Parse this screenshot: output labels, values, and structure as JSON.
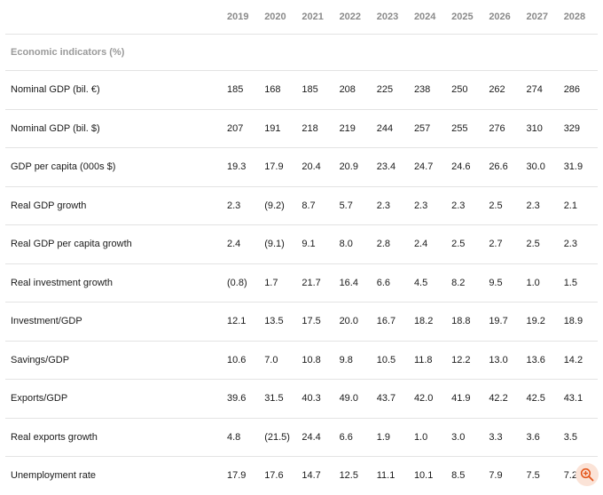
{
  "header": {
    "label": "",
    "years": [
      "2019",
      "2020",
      "2021",
      "2022",
      "2023",
      "2024",
      "2025",
      "2026",
      "2027",
      "2028"
    ]
  },
  "section_title": "Economic indicators (%)",
  "rows": [
    {
      "label": "Nominal GDP (bil. €)",
      "values": [
        "185",
        "168",
        "185",
        "208",
        "225",
        "238",
        "250",
        "262",
        "274",
        "286"
      ]
    },
    {
      "label": "Nominal GDP (bil. $)",
      "values": [
        "207",
        "191",
        "218",
        "219",
        "244",
        "257",
        "255",
        "276",
        "310",
        "329"
      ]
    },
    {
      "label": "GDP per capita (000s $)",
      "values": [
        "19.3",
        "17.9",
        "20.4",
        "20.9",
        "23.4",
        "24.7",
        "24.6",
        "26.6",
        "30.0",
        "31.9"
      ]
    },
    {
      "label": "Real GDP growth",
      "values": [
        "2.3",
        "(9.2)",
        "8.7",
        "5.7",
        "2.3",
        "2.3",
        "2.3",
        "2.5",
        "2.3",
        "2.1"
      ]
    },
    {
      "label": "Real GDP per capita growth",
      "values": [
        "2.4",
        "(9.1)",
        "9.1",
        "8.0",
        "2.8",
        "2.4",
        "2.5",
        "2.7",
        "2.5",
        "2.3"
      ]
    },
    {
      "label": "Real investment growth",
      "values": [
        "(0.8)",
        "1.7",
        "21.7",
        "16.4",
        "6.6",
        "4.5",
        "8.2",
        "9.5",
        "1.0",
        "1.5"
      ]
    },
    {
      "label": "Investment/GDP",
      "values": [
        "12.1",
        "13.5",
        "17.5",
        "20.0",
        "16.7",
        "18.2",
        "18.8",
        "19.7",
        "19.2",
        "18.9"
      ]
    },
    {
      "label": "Savings/GDP",
      "values": [
        "10.6",
        "7.0",
        "10.8",
        "9.8",
        "10.5",
        "11.8",
        "12.2",
        "13.0",
        "13.6",
        "14.2"
      ]
    },
    {
      "label": "Exports/GDP",
      "values": [
        "39.6",
        "31.5",
        "40.3",
        "49.0",
        "43.7",
        "42.0",
        "41.9",
        "42.2",
        "42.5",
        "43.1"
      ]
    },
    {
      "label": "Real exports growth",
      "values": [
        "4.8",
        "(21.5)",
        "24.4",
        "6.6",
        "1.9",
        "1.0",
        "3.0",
        "3.3",
        "3.6",
        "3.5"
      ]
    },
    {
      "label": "Unemployment rate",
      "values": [
        "17.9",
        "17.6",
        "14.7",
        "12.5",
        "11.1",
        "10.1",
        "8.5",
        "7.9",
        "7.5",
        "7.2"
      ]
    }
  ],
  "zoom": {
    "icon": "zoom-in-icon",
    "color": "#e4571d"
  }
}
